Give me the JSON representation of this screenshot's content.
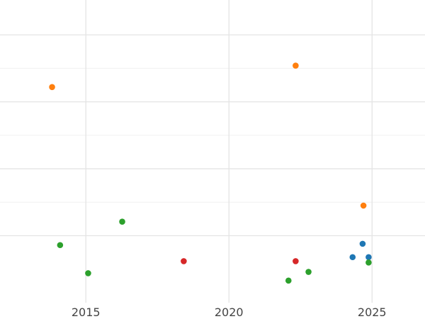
{
  "chart_data": {
    "type": "scatter",
    "title": "",
    "xlabel": "",
    "ylabel": "",
    "xlim": [
      2012,
      2026.85
    ],
    "ylim": [
      0,
      4.52
    ],
    "grid": true,
    "x_ticks": [
      2015,
      2020,
      2025
    ],
    "x_tick_labels": [
      "2015",
      "2020",
      "2025"
    ],
    "y_major_ticks": [
      1,
      2,
      3,
      4
    ],
    "y_minor_ticks": [
      1.5,
      2.5,
      3.5
    ],
    "y_tick_labels": [],
    "series": [
      {
        "color": "#1f77b4",
        "points": [
          {
            "x": 2024.32,
            "y": 0.68
          },
          {
            "x": 2024.67,
            "y": 0.88
          },
          {
            "x": 2024.88,
            "y": 0.68
          }
        ]
      },
      {
        "color": "#ff7f0e",
        "points": [
          {
            "x": 2013.82,
            "y": 3.22
          },
          {
            "x": 2022.33,
            "y": 3.54
          },
          {
            "x": 2024.7,
            "y": 1.45
          }
        ]
      },
      {
        "color": "#2ca02c",
        "points": [
          {
            "x": 2014.1,
            "y": 0.86
          },
          {
            "x": 2015.08,
            "y": 0.44
          },
          {
            "x": 2016.27,
            "y": 1.21
          },
          {
            "x": 2022.08,
            "y": 0.33
          },
          {
            "x": 2022.78,
            "y": 0.46
          },
          {
            "x": 2024.88,
            "y": 0.6
          }
        ]
      },
      {
        "color": "#d62728",
        "points": [
          {
            "x": 2018.42,
            "y": 0.62
          },
          {
            "x": 2022.33,
            "y": 0.62
          }
        ]
      }
    ]
  }
}
